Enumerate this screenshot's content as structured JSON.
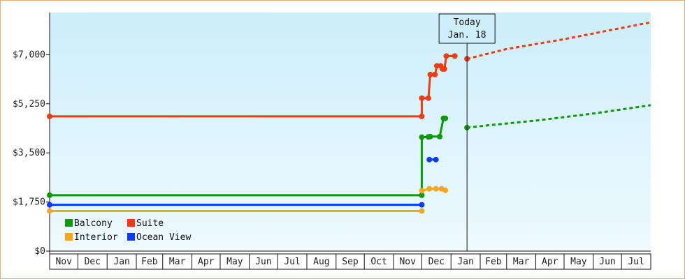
{
  "chart_data": {
    "type": "line",
    "title": "",
    "xlabel": "",
    "ylabel": "",
    "ylim": [
      0,
      8500
    ],
    "y_ticks": [
      {
        "value": 0,
        "label": "$0"
      },
      {
        "value": 1750,
        "label": "$1,750"
      },
      {
        "value": 3500,
        "label": "$3,500"
      },
      {
        "value": 5250,
        "label": "$5,250"
      },
      {
        "value": 7000,
        "label": "$7,000"
      }
    ],
    "x_start": "2016-11-01",
    "x_end": "2018-08-01",
    "x_ticks": [
      "Nov",
      "Dec",
      "Jan",
      "Feb",
      "Mar",
      "Apr",
      "May",
      "Jun",
      "Jul",
      "Aug",
      "Sep",
      "Oct",
      "Nov",
      "Dec",
      "Jan",
      "Feb",
      "Mar",
      "Apr",
      "May",
      "Jun",
      "Jul"
    ],
    "grid": false,
    "legend": "bottom-left",
    "background": {
      "top": "#cdeefa",
      "bottom": "#eefaff"
    },
    "annotation": {
      "line1": "Today",
      "line2": "Jan. 18",
      "date": "2018-01-18"
    },
    "series": [
      {
        "name": "Balcony",
        "color": "#0a9a0a",
        "segments": [
          {
            "dashed": false,
            "points": [
              [
                "2016-11-01",
                1990
              ],
              [
                "2017-12-01",
                1990
              ],
              [
                "2017-12-01",
                4060
              ],
              [
                "2017-12-08",
                4070
              ],
              [
                "2017-12-10",
                4080
              ],
              [
                "2017-12-20",
                4080
              ],
              [
                "2017-12-24",
                4730
              ],
              [
                "2017-12-26",
                4730
              ]
            ]
          },
          {
            "dashed": true,
            "points": [
              [
                "2018-01-18",
                4400
              ],
              [
                "2018-02-15",
                4500
              ],
              [
                "2018-04-01",
                4650
              ],
              [
                "2018-06-01",
                4900
              ],
              [
                "2018-08-01",
                5200
              ]
            ]
          }
        ],
        "markers": [
          [
            "2016-11-01",
            1990
          ],
          [
            "2017-12-01",
            1990
          ],
          [
            "2017-12-01",
            4060
          ],
          [
            "2017-12-08",
            4070
          ],
          [
            "2017-12-10",
            4080
          ],
          [
            "2017-12-20",
            4080
          ],
          [
            "2017-12-24",
            4730
          ],
          [
            "2017-12-26",
            4730
          ],
          [
            "2018-01-18",
            4400
          ]
        ]
      },
      {
        "name": "Suite",
        "color": "#f03a10",
        "segments": [
          {
            "dashed": false,
            "points": [
              [
                "2016-11-01",
                4800
              ],
              [
                "2017-12-01",
                4800
              ],
              [
                "2017-12-01",
                5450
              ],
              [
                "2017-12-08",
                5450
              ],
              [
                "2017-12-10",
                6290
              ],
              [
                "2017-12-15",
                6290
              ],
              [
                "2017-12-17",
                6600
              ],
              [
                "2017-12-21",
                6600
              ],
              [
                "2017-12-23",
                6490
              ],
              [
                "2017-12-25",
                6490
              ],
              [
                "2017-12-27",
                6950
              ],
              [
                "2018-01-05",
                6950
              ]
            ]
          },
          {
            "dashed": true,
            "points": [
              [
                "2018-01-18",
                6850
              ],
              [
                "2018-03-01",
                7200
              ],
              [
                "2018-05-01",
                7550
              ],
              [
                "2018-07-01",
                7950
              ],
              [
                "2018-08-01",
                8150
              ]
            ]
          }
        ],
        "markers": [
          [
            "2016-11-01",
            4800
          ],
          [
            "2017-12-01",
            4800
          ],
          [
            "2017-12-01",
            5450
          ],
          [
            "2017-12-08",
            5450
          ],
          [
            "2017-12-10",
            6290
          ],
          [
            "2017-12-15",
            6290
          ],
          [
            "2017-12-17",
            6600
          ],
          [
            "2017-12-21",
            6600
          ],
          [
            "2017-12-23",
            6490
          ],
          [
            "2017-12-25",
            6490
          ],
          [
            "2017-12-27",
            6950
          ],
          [
            "2018-01-05",
            6950
          ],
          [
            "2018-01-18",
            6850
          ]
        ]
      },
      {
        "name": "Interior",
        "color": "#f7a718",
        "segments": [
          {
            "dashed": false,
            "points": [
              [
                "2016-11-01",
                1430
              ],
              [
                "2017-12-01",
                1430
              ]
            ]
          },
          {
            "dashed": false,
            "points": [
              [
                "2017-12-01",
                2150
              ],
              [
                "2017-12-09",
                2220
              ],
              [
                "2017-12-16",
                2220
              ],
              [
                "2017-12-22",
                2220
              ],
              [
                "2017-12-26",
                2170
              ]
            ]
          }
        ],
        "markers": [
          [
            "2016-11-01",
            1430
          ],
          [
            "2017-12-01",
            1430
          ],
          [
            "2017-12-01",
            2150
          ],
          [
            "2017-12-09",
            2220
          ],
          [
            "2017-12-16",
            2220
          ],
          [
            "2017-12-22",
            2220
          ],
          [
            "2017-12-26",
            2170
          ]
        ]
      },
      {
        "name": "Ocean View",
        "color": "#0b3cf0",
        "segments": [
          {
            "dashed": false,
            "points": [
              [
                "2016-11-01",
                1650
              ],
              [
                "2017-12-01",
                1650
              ]
            ]
          },
          {
            "dashed": false,
            "points": [
              [
                "2017-12-09",
                3260
              ],
              [
                "2017-12-16",
                3260
              ]
            ]
          }
        ],
        "markers": [
          [
            "2016-11-01",
            1650
          ],
          [
            "2017-12-01",
            1650
          ],
          [
            "2017-12-09",
            3260
          ],
          [
            "2017-12-16",
            3260
          ]
        ]
      }
    ]
  }
}
